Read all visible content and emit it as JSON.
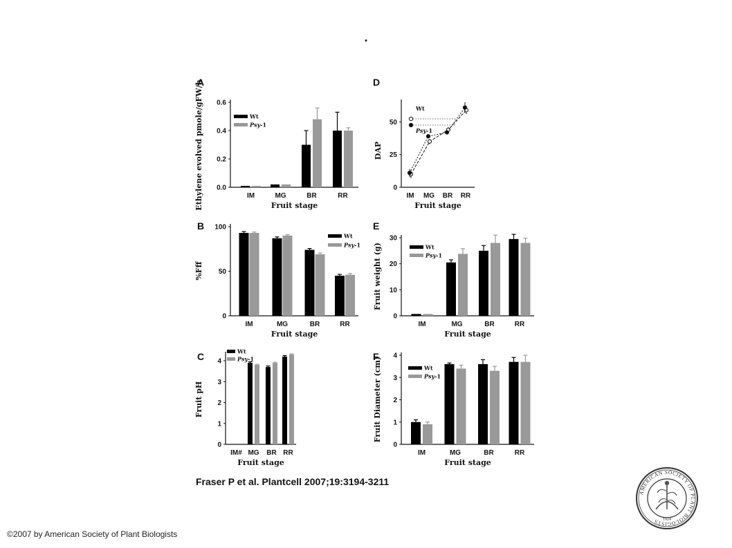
{
  "page": {
    "title": ".",
    "citation": "Fraser P et al. Plantcell 2007;19:3194-3211",
    "copyright": "©2007 by American Society of Plant Biologists",
    "logo_text": "AMERICAN SOCIETY OF PLANT BIOLOGISTS 1924",
    "colors": {
      "wt": "#000000",
      "psy1": "#999999",
      "background": "#ffffff"
    }
  },
  "chart_data": [
    {
      "panel": "A",
      "type": "bar",
      "categories": [
        "IM",
        "MG",
        "BR",
        "RR"
      ],
      "series": [
        {
          "name": "Wt",
          "values": [
            0.01,
            0.02,
            0.3,
            0.4
          ],
          "errors": [
            0.0,
            0.0,
            0.1,
            0.13
          ]
        },
        {
          "name": "Psy-1",
          "values": [
            0.01,
            0.02,
            0.48,
            0.4
          ],
          "errors": [
            0.0,
            0.0,
            0.08,
            0.02
          ]
        }
      ],
      "xlabel": "Fruit stage",
      "ylabel": "Ethylene evolved pmole/gFW/h",
      "ylim": [
        0,
        0.6
      ],
      "yticks": [
        "0.0",
        "0.2",
        "0.4",
        "0.6"
      ],
      "legend": "top-left"
    },
    {
      "panel": "B",
      "type": "bar",
      "categories": [
        "IM",
        "MG",
        "BR",
        "RR"
      ],
      "series": [
        {
          "name": "Wt",
          "values": [
            93,
            87,
            74,
            45
          ],
          "errors": [
            1.5,
            1.5,
            1.5,
            1.5
          ]
        },
        {
          "name": "Psy-1",
          "values": [
            93,
            90,
            69,
            46
          ],
          "errors": [
            1,
            1,
            1.5,
            1.5
          ]
        }
      ],
      "xlabel": "Fruit stage",
      "ylabel": "%Fff",
      "ylim": [
        0,
        100
      ],
      "yticks": [
        "0",
        "50",
        "100"
      ],
      "legend": "top-right"
    },
    {
      "panel": "C",
      "type": "bar",
      "categories": [
        "IM#",
        "MG",
        "BR",
        "RR"
      ],
      "series": [
        {
          "name": "Wt",
          "values": [
            null,
            3.9,
            3.7,
            4.2
          ],
          "errors": [
            0,
            0.05,
            0.05,
            0.05
          ]
        },
        {
          "name": "Psy-1",
          "values": [
            null,
            3.8,
            3.9,
            4.3
          ],
          "errors": [
            0,
            0.03,
            0.03,
            0.03
          ]
        }
      ],
      "xlabel": "Fruit stage",
      "ylabel": "Fruit pH",
      "ylim": [
        0,
        4.3
      ],
      "yticks": [
        "0",
        "1",
        "2",
        "3",
        "4"
      ],
      "legend": "top-left"
    },
    {
      "panel": "D",
      "type": "line",
      "categories": [
        "IM",
        "MG",
        "BR",
        "RR"
      ],
      "series": [
        {
          "name": "Wt",
          "values": [
            10,
            35,
            44,
            59
          ],
          "errors": [
            3,
            2,
            2,
            3
          ],
          "marker": "open"
        },
        {
          "name": "Psy-1",
          "values": [
            11,
            39,
            42,
            61
          ],
          "errors": [
            3,
            1,
            1,
            4
          ],
          "marker": "filled"
        }
      ],
      "xlabel": "Fruit stage",
      "ylabel": "DAP",
      "ylim": [
        0,
        65
      ],
      "yticks": [
        "0",
        "25",
        "50"
      ],
      "legend": "top-left"
    },
    {
      "panel": "E",
      "type": "bar",
      "categories": [
        "IM",
        "MG",
        "BR",
        "RR"
      ],
      "series": [
        {
          "name": "Wt",
          "values": [
            0.7,
            20.5,
            25,
            29.5
          ],
          "errors": [
            0,
            1,
            2,
            1.8
          ]
        },
        {
          "name": "Psy-1",
          "values": [
            0.7,
            23.8,
            28,
            28
          ],
          "errors": [
            0,
            2,
            3,
            1.8
          ]
        }
      ],
      "xlabel": "Fruit stage",
      "ylabel": "Fruit weight (g)",
      "ylim": [
        0,
        30
      ],
      "yticks": [
        "0",
        "10",
        "20",
        "30"
      ],
      "legend": "top-left"
    },
    {
      "panel": "F",
      "type": "bar",
      "categories": [
        "IM",
        "MG",
        "BR",
        "RR"
      ],
      "series": [
        {
          "name": "Wt",
          "values": [
            1.0,
            3.6,
            3.6,
            3.7
          ],
          "errors": [
            0.1,
            0.05,
            0.2,
            0.2
          ]
        },
        {
          "name": "Psy-1",
          "values": [
            0.9,
            3.4,
            3.3,
            3.7
          ],
          "errors": [
            0.1,
            0.15,
            0.2,
            0.3
          ]
        }
      ],
      "xlabel": "Fruit stage",
      "ylabel": "Fruit Diameter (cm)",
      "ylim": [
        0,
        4
      ],
      "yticks": [
        "0",
        "1",
        "2",
        "3",
        "4"
      ],
      "legend": "top-left"
    }
  ]
}
